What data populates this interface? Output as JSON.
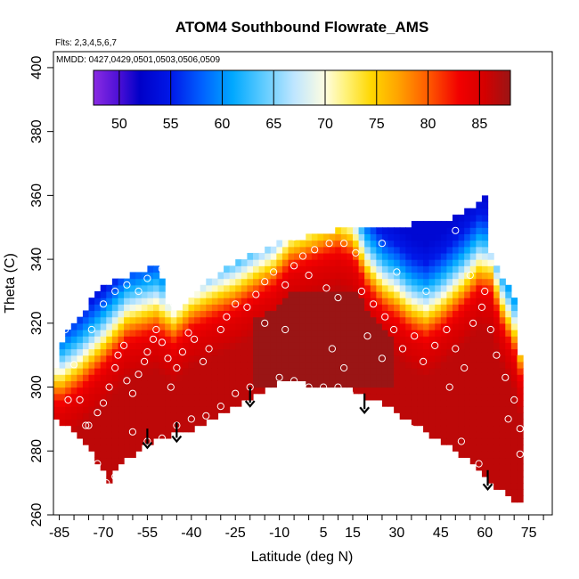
{
  "chart_data": {
    "type": "heatmap",
    "title": "ATOM4 Southbound Flowrate_AMS",
    "flights_label": "Flts: 2,3,4,5,6,7",
    "mmdd_label": "MMDD: 0427,0429,0501,0503,0506,0509",
    "xlabel": "Latitude (deg N)",
    "ylabel": "Theta (C)",
    "xlim": [
      -87,
      83
    ],
    "ylim": [
      260,
      405
    ],
    "x_ticks": [
      -85,
      -70,
      -55,
      -40,
      -25,
      -10,
      5,
      15,
      30,
      45,
      60,
      75
    ],
    "x_minor_step": 5,
    "y_ticks": [
      260,
      280,
      300,
      320,
      340,
      360,
      380,
      400
    ],
    "colorbar": {
      "range": [
        47.5,
        88
      ],
      "ticks": [
        50,
        55,
        60,
        65,
        70,
        75,
        80,
        85
      ],
      "stops": [
        {
          "v": 47.5,
          "c": "#8a2be2"
        },
        {
          "v": 50,
          "c": "#4b0fd6"
        },
        {
          "v": 52,
          "c": "#0000c8"
        },
        {
          "v": 55,
          "c": "#0018e8"
        },
        {
          "v": 58,
          "c": "#0060ff"
        },
        {
          "v": 61,
          "c": "#00a8ff"
        },
        {
          "v": 64,
          "c": "#5ecbff"
        },
        {
          "v": 67,
          "c": "#bfe6ff"
        },
        {
          "v": 70,
          "c": "#fffde0"
        },
        {
          "v": 72,
          "c": "#fff27a"
        },
        {
          "v": 74.5,
          "c": "#ffd700"
        },
        {
          "v": 77,
          "c": "#ffa500"
        },
        {
          "v": 80,
          "c": "#ff5a00"
        },
        {
          "v": 83,
          "c": "#f20000"
        },
        {
          "v": 85.5,
          "c": "#d40000"
        },
        {
          "v": 88,
          "c": "#9a1515"
        }
      ]
    },
    "bottom_boundary": [
      [
        -87,
        291
      ],
      [
        -80,
        286
      ],
      [
        -74,
        280
      ],
      [
        -70,
        274
      ],
      [
        -68,
        270
      ],
      [
        -65,
        275
      ],
      [
        -60,
        279
      ],
      [
        -55,
        282
      ],
      [
        -50,
        284
      ],
      [
        -45,
        286
      ],
      [
        -40,
        287
      ],
      [
        -35,
        289
      ],
      [
        -30,
        292
      ],
      [
        -25,
        294
      ],
      [
        -20,
        297
      ],
      [
        -15,
        299
      ],
      [
        -10,
        302
      ],
      [
        -5,
        301.5
      ],
      [
        0,
        301
      ],
      [
        5,
        300.5
      ],
      [
        10,
        300
      ],
      [
        15,
        299
      ],
      [
        20,
        297
      ],
      [
        25,
        295
      ],
      [
        30,
        292
      ],
      [
        35,
        289
      ],
      [
        40,
        286
      ],
      [
        45,
        283
      ],
      [
        50,
        280
      ],
      [
        55,
        277
      ],
      [
        60,
        273
      ],
      [
        65,
        268
      ],
      [
        70,
        265
      ],
      [
        72,
        265
      ]
    ],
    "top_boundary": [
      [
        -87,
        291
      ],
      [
        -87,
        300
      ],
      [
        -85,
        313
      ],
      [
        -82,
        317
      ],
      [
        -78,
        322
      ],
      [
        -75,
        326
      ],
      [
        -70,
        331
      ],
      [
        -65,
        334
      ],
      [
        -60,
        335
      ],
      [
        -56,
        336
      ],
      [
        -52,
        338
      ],
      [
        -50,
        334
      ],
      [
        -48,
        326
      ],
      [
        -45,
        324
      ],
      [
        -40,
        327
      ],
      [
        -35,
        333
      ],
      [
        -30,
        336
      ],
      [
        -25,
        339
      ],
      [
        -20,
        341
      ],
      [
        -15,
        343
      ],
      [
        -10,
        345
      ],
      [
        -5,
        346
      ],
      [
        0,
        347
      ],
      [
        5,
        348
      ],
      [
        10,
        349
      ],
      [
        15,
        350
      ],
      [
        20,
        350
      ],
      [
        25,
        350
      ],
      [
        30,
        350.5
      ],
      [
        35,
        351
      ],
      [
        40,
        351.5
      ],
      [
        45,
        352
      ],
      [
        50,
        353
      ],
      [
        55,
        356
      ],
      [
        59,
        359
      ],
      [
        60,
        360
      ],
      [
        60,
        350
      ],
      [
        63,
        339
      ],
      [
        67,
        333
      ],
      [
        70,
        327
      ],
      [
        72,
        310
      ],
      [
        72,
        265
      ]
    ],
    "ridge_points": [
      [
        -84,
        299
      ],
      [
        -78,
        303
      ],
      [
        -70,
        310
      ],
      [
        -62,
        318
      ],
      [
        -52,
        321
      ],
      [
        -46,
        317
      ],
      [
        -40,
        322
      ],
      [
        -33,
        325
      ],
      [
        -25,
        328
      ],
      [
        -18,
        332
      ],
      [
        -12,
        335
      ],
      [
        -6,
        341
      ],
      [
        0,
        343
      ],
      [
        6,
        345
      ],
      [
        10,
        346
      ],
      [
        15,
        344
      ],
      [
        20,
        334
      ],
      [
        25,
        328
      ],
      [
        30,
        325
      ],
      [
        35,
        321
      ],
      [
        40,
        319
      ],
      [
        45,
        322
      ],
      [
        52,
        328
      ],
      [
        58,
        334
      ],
      [
        62,
        333
      ],
      [
        66,
        322
      ],
      [
        70,
        314
      ],
      [
        72,
        307
      ]
    ],
    "layer_offsets": [
      {
        "d": -16,
        "v": 86.5
      },
      {
        "d": -7,
        "v": 84.5
      },
      {
        "d": -3,
        "v": 82.5
      },
      {
        "d": 0,
        "v": 79
      },
      {
        "d": 2,
        "v": 76
      },
      {
        "d": 4,
        "v": 73
      },
      {
        "d": 6,
        "v": 70
      },
      {
        "d": 8,
        "v": 67
      },
      {
        "d": 11,
        "v": 63
      },
      {
        "d": 15,
        "v": 59
      },
      {
        "d": 20,
        "v": 55
      },
      {
        "d": 26,
        "v": 53
      }
    ],
    "dark_core": {
      "x": [
        -20,
        30
      ],
      "y": [
        300,
        330
      ],
      "v": 88
    },
    "grid_resolution": {
      "dx": 2,
      "dy": 2
    },
    "data_points": [
      [
        -83,
        318
      ],
      [
        -80,
        307
      ],
      [
        -78,
        296
      ],
      [
        -75,
        288
      ],
      [
        -72,
        292
      ],
      [
        -70,
        295
      ],
      [
        -68,
        300
      ],
      [
        -66,
        306
      ],
      [
        -65,
        310
      ],
      [
        -63,
        313
      ],
      [
        -62,
        302
      ],
      [
        -60,
        298
      ],
      [
        -58,
        304
      ],
      [
        -56,
        308
      ],
      [
        -55,
        311
      ],
      [
        -53,
        315
      ],
      [
        -52,
        318
      ],
      [
        -50,
        314
      ],
      [
        -48,
        309
      ],
      [
        -47,
        300
      ],
      [
        -45,
        306
      ],
      [
        -43,
        311
      ],
      [
        -41,
        317
      ],
      [
        -39,
        315
      ],
      [
        -36,
        308
      ],
      [
        -34,
        312
      ],
      [
        -30,
        318
      ],
      [
        -28,
        322
      ],
      [
        -25,
        326
      ],
      [
        -21,
        325
      ],
      [
        -18,
        329
      ],
      [
        -15,
        333
      ],
      [
        -12,
        336
      ],
      [
        -8,
        332
      ],
      [
        -5,
        338
      ],
      [
        -2,
        341
      ],
      [
        2,
        343
      ],
      [
        7,
        345
      ],
      [
        12,
        345
      ],
      [
        16,
        342
      ],
      [
        18,
        330
      ],
      [
        22,
        326
      ],
      [
        26,
        322
      ],
      [
        29,
        318
      ],
      [
        32,
        312
      ],
      [
        36,
        316
      ],
      [
        39,
        308
      ],
      [
        43,
        313
      ],
      [
        47,
        318
      ],
      [
        50,
        312
      ],
      [
        53,
        306
      ],
      [
        56,
        320
      ],
      [
        59,
        325
      ],
      [
        62,
        318
      ],
      [
        64,
        310
      ],
      [
        67,
        303
      ],
      [
        70,
        296
      ],
      [
        -60,
        286
      ],
      [
        -55,
        283
      ],
      [
        -50,
        284
      ],
      [
        -45,
        288
      ],
      [
        -40,
        290
      ],
      [
        -35,
        291
      ],
      [
        -30,
        294
      ],
      [
        -25,
        298
      ],
      [
        -20,
        300
      ],
      [
        -10,
        303
      ],
      [
        -5,
        302
      ],
      [
        0,
        300
      ],
      [
        5,
        300
      ],
      [
        10,
        300
      ],
      [
        14,
        298
      ],
      [
        18,
        296
      ],
      [
        26,
        291
      ],
      [
        35,
        287
      ],
      [
        44,
        280
      ],
      [
        52,
        283
      ],
      [
        58,
        276
      ],
      [
        -82,
        296
      ],
      [
        -76,
        288
      ],
      [
        -72,
        276
      ],
      [
        -69,
        270
      ],
      [
        -66,
        272
      ],
      [
        -74,
        318
      ],
      [
        -70,
        326
      ],
      [
        -66,
        330
      ],
      [
        -62,
        332
      ],
      [
        -58,
        330
      ],
      [
        -55,
        334
      ],
      [
        -50,
        337
      ],
      [
        -46,
        326
      ],
      [
        -42,
        330
      ],
      [
        -20,
        349
      ],
      [
        -5,
        347
      ],
      [
        25,
        345
      ],
      [
        50,
        349
      ],
      [
        70,
        358
      ],
      [
        0,
        335
      ],
      [
        6,
        331
      ],
      [
        10,
        328
      ],
      [
        20,
        316
      ],
      [
        40,
        330
      ],
      [
        30,
        336
      ],
      [
        55,
        335
      ],
      [
        60,
        330
      ],
      [
        -15,
        320
      ],
      [
        -8,
        318
      ],
      [
        8,
        312
      ],
      [
        12,
        306
      ],
      [
        25,
        309
      ],
      [
        48,
        300
      ],
      [
        68,
        290
      ],
      [
        72,
        287
      ],
      [
        72,
        279
      ]
    ],
    "arrows": [
      [
        -55,
        287
      ],
      [
        -45,
        289
      ],
      [
        -20,
        300
      ],
      [
        19,
        298
      ],
      [
        61,
        274
      ]
    ]
  }
}
